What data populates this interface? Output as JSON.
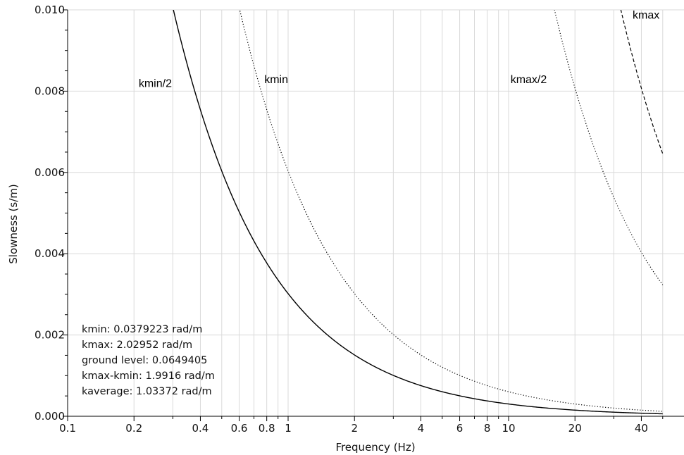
{
  "chart_data": {
    "type": "line",
    "title": "",
    "xlabel": "Frequency (Hz)",
    "ylabel": "Slowness (s/m)",
    "xscale": "log",
    "xlim": [
      0.1,
      50
    ],
    "ylim": [
      0.0,
      0.01
    ],
    "grid": true,
    "x_ticks_major": [
      {
        "value": 0.1,
        "label": "0.1"
      },
      {
        "value": 0.2,
        "label": "0.2"
      },
      {
        "value": 0.4,
        "label": "0.4"
      },
      {
        "value": 0.6,
        "label": "0.6"
      },
      {
        "value": 0.8,
        "label": "0.8"
      },
      {
        "value": 1,
        "label": "1"
      },
      {
        "value": 2,
        "label": "2"
      },
      {
        "value": 4,
        "label": "4"
      },
      {
        "value": 6,
        "label": "6"
      },
      {
        "value": 8,
        "label": "8"
      },
      {
        "value": 10,
        "label": "10"
      },
      {
        "value": 20,
        "label": "20"
      },
      {
        "value": 40,
        "label": "40"
      }
    ],
    "y_ticks": [
      {
        "value": 0.0,
        "label": "0.000"
      },
      {
        "value": 0.002,
        "label": "0.002"
      },
      {
        "value": 0.004,
        "label": "0.004"
      },
      {
        "value": 0.006,
        "label": "0.006"
      },
      {
        "value": 0.008,
        "label": "0.008"
      },
      {
        "value": 0.01,
        "label": "0.010"
      }
    ],
    "series": [
      {
        "name": "kmin/2",
        "style": "solid",
        "k": 0.01896115
      },
      {
        "name": "kmin",
        "style": "dotted",
        "k": 0.0379223
      },
      {
        "name": "kmax/2",
        "style": "dotted",
        "k": 1.01476
      },
      {
        "name": "kmax",
        "style": "dashed",
        "k": 2.02952
      }
    ],
    "curve_labels": [
      {
        "series": "kmin/2",
        "text": "kmin/2",
        "x": 0.21,
        "y": 0.0081
      },
      {
        "series": "kmin",
        "text": "kmin",
        "x": 0.78,
        "y": 0.0082
      },
      {
        "series": "kmax/2",
        "text": "kmax/2",
        "x": 10.2,
        "y": 0.0082
      },
      {
        "series": "kmax",
        "text": "kmax",
        "x": 36.5,
        "y": 0.00978
      }
    ],
    "annotations": [
      "kmin: 0.0379223 rad/m",
      "kmax: 2.02952 rad/m",
      "ground level: 0.0649405",
      "kmax-kmin: 1.9916 rad/m",
      "kaverage: 1.03372 rad/m"
    ],
    "colors": {
      "background": "#ffffff",
      "grid": "#d9d9d9",
      "axis": "#000000",
      "curve": "#000000"
    }
  }
}
